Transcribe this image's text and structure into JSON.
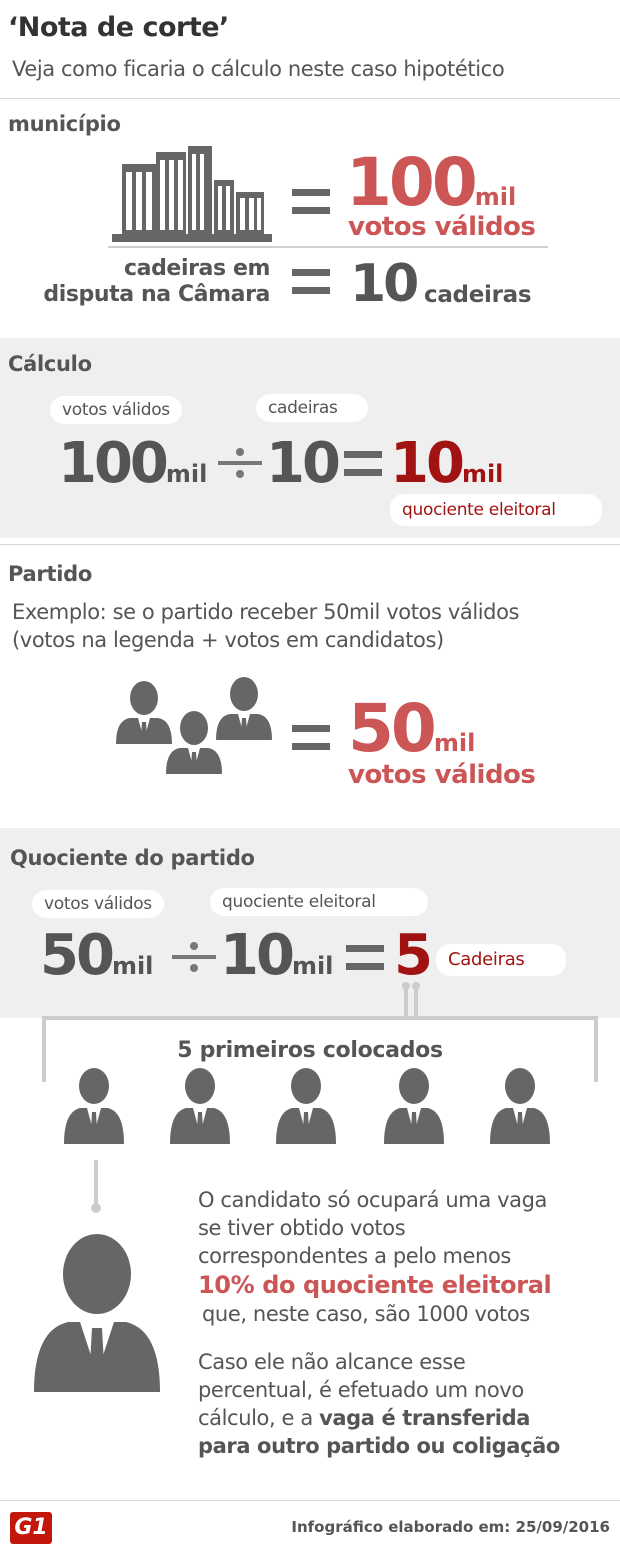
{
  "header": {
    "title": "‘Nota de corte’",
    "subtitle": "Veja como ficaria o cálculo neste caso hipotético"
  },
  "municipio": {
    "heading": "município",
    "votes_number": "100",
    "votes_unit": "mil",
    "votes_label": "votos válidos",
    "seats_label_line1": "cadeiras em",
    "seats_label_line2": "disputa na Câmara",
    "seats_number": "10",
    "seats_unit": "cadeiras"
  },
  "calculo": {
    "heading": "Cálculo",
    "pill_votes": "votos válidos",
    "pill_seats": "cadeiras",
    "left_number": "100",
    "left_unit": "mil",
    "divisor": "10",
    "result_number": "10",
    "result_unit": "mil",
    "result_label": "quociente eleitoral"
  },
  "partido": {
    "heading": "Partido",
    "example_line1": "Exemplo: se o partido receber 50mil votos válidos",
    "example_line2": "(votos na legenda + votos em candidatos)",
    "votes_number": "50",
    "votes_unit": "mil",
    "votes_label": "votos válidos"
  },
  "quociente_partido": {
    "heading": "Quociente do partido",
    "pill_votes": "votos válidos",
    "pill_quociente": "quociente eleitoral",
    "left_number": "50",
    "left_unit": "mil",
    "divisor_number": "10",
    "divisor_unit": "mil",
    "result_number": "5",
    "result_label": "Cadeiras"
  },
  "colocados": {
    "label": "5 primeiros colocados"
  },
  "explicacao": {
    "p1_line1": "O candidato só ocupará uma vaga",
    "p1_line2": "se tiver obtido votos",
    "p1_line3": "correspondentes a pelo menos",
    "p1_highlight": "10% do quociente eleitoral",
    "p1_line5": "que, neste caso, são 1000 votos",
    "p2_line1": "Caso ele não alcance esse",
    "p2_line2": "percentual, é efetuado um novo",
    "p2_line3": "cálculo, e a",
    "p2_bold3": "vaga é transferida",
    "p2_bold4": "para outro partido ou coligação"
  },
  "footer": {
    "logo": "G1",
    "credit": "Infográfico elaborado em: 25/09/2016"
  },
  "colors": {
    "accent_red": "#cc5555",
    "dark_red": "#a11313",
    "text_gray": "#555555",
    "panel_gray": "#efefef"
  }
}
